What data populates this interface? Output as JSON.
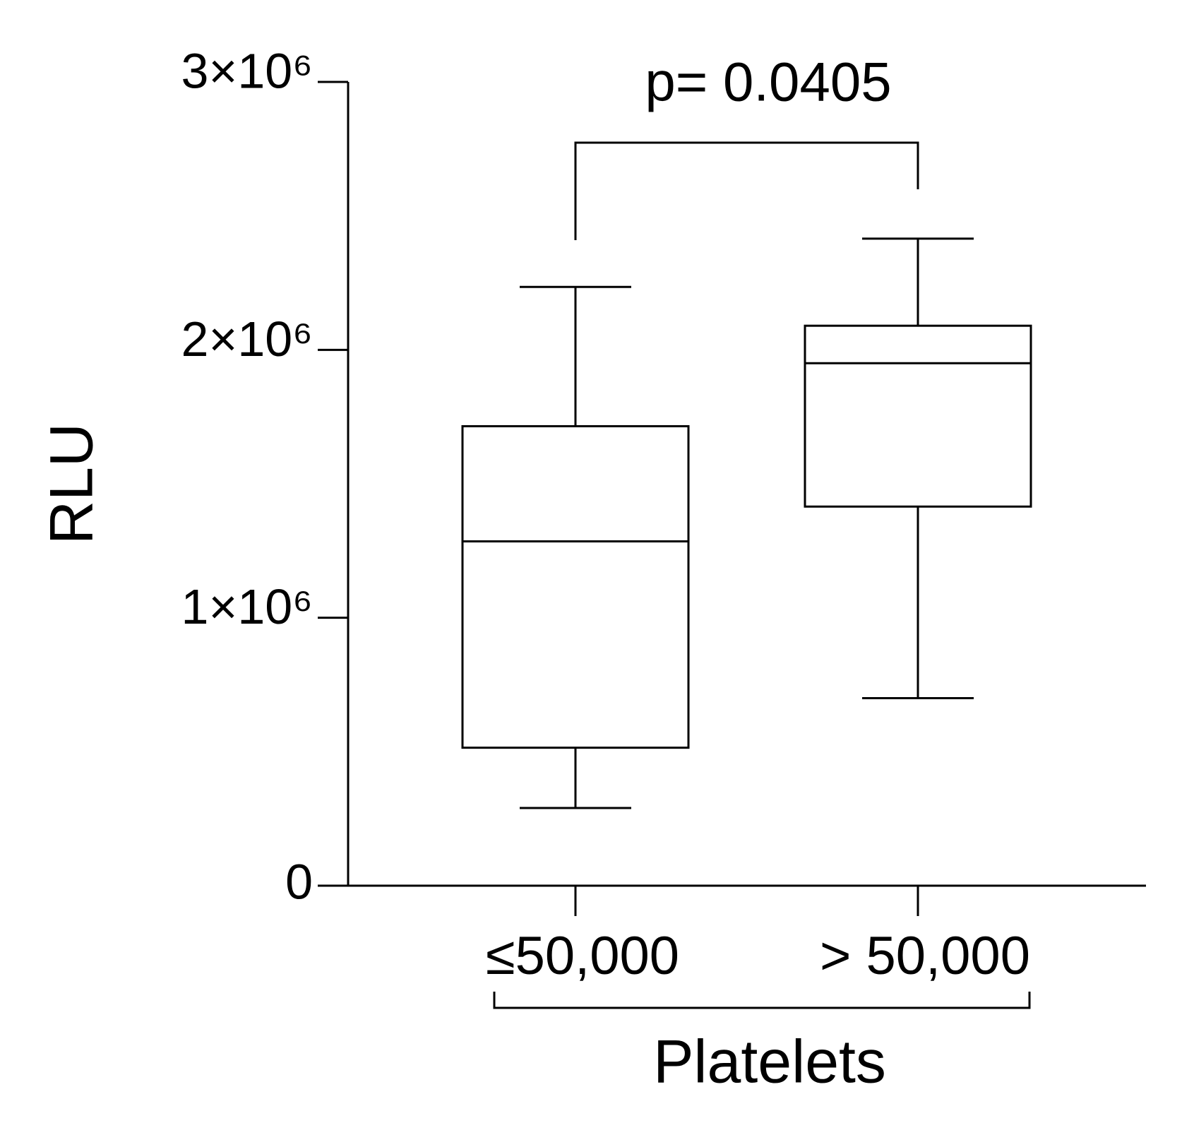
{
  "chart_data": {
    "type": "box",
    "y_label": "RLU",
    "x_label": "Platelets",
    "annotation": "p= 0.0405",
    "categories": [
      "≤50,000",
      "> 50,000"
    ],
    "boxes": [
      {
        "min": 290000,
        "q1": 515000,
        "median": 1285000,
        "q3": 1715000,
        "max": 2235000
      },
      {
        "min": 700000,
        "q1": 1415000,
        "median": 1950000,
        "q3": 2090000,
        "max": 2415000
      }
    ],
    "color": "#000000",
    "ylim": [
      0,
      3000000
    ],
    "yticks": [
      0,
      {
        "value": 1000000,
        "label": "1×10⁶"
      },
      {
        "value": 2000000,
        "label": "2×10⁶"
      },
      {
        "value": 3000000,
        "label": "3×10⁶"
      }
    ]
  }
}
